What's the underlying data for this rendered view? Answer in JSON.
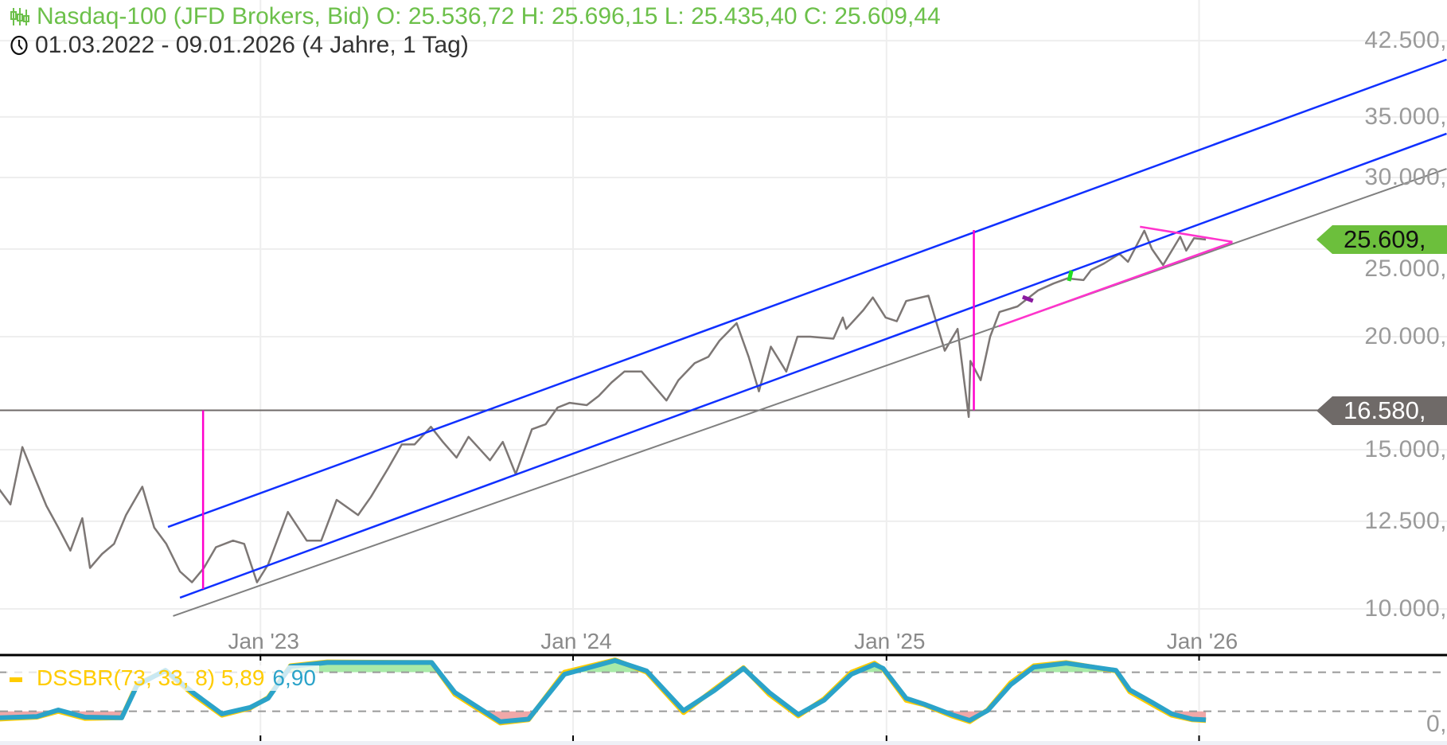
{
  "header": {
    "instrument_line": "Nasdaq-100 (JFD Brokers, Bid) O: 25.536,72  H: 25.696,15  L: 25.435,40  C: 25.609,44",
    "range_line": "01.03.2022 - 09.01.2026  (4 Jahre, 1 Tag)",
    "instrument_icon": "candlestick-icon",
    "range_icon": "clock-icon",
    "color": "#6cc04a"
  },
  "chart_data": [
    {
      "type": "line",
      "scale": "log",
      "ylim": [
        9000,
        45000
      ],
      "xlim": [
        "2022-03-01",
        "2026-09-30"
      ],
      "grid": true,
      "y_ticks": [
        {
          "value": 42500,
          "label": "42.500,"
        },
        {
          "value": 35000,
          "label": "35.000,"
        },
        {
          "value": 30000,
          "label": "30.000,"
        },
        {
          "value": 25000,
          "label": "25.000,"
        },
        {
          "value": 20000,
          "label": "20.000,"
        },
        {
          "value": 15000,
          "label": "15.000,"
        },
        {
          "value": 12500,
          "label": "12.500,"
        },
        {
          "value": 10000,
          "label": "10.000,"
        }
      ],
      "x_ticks": [
        {
          "date": "2023-01-01",
          "label": "Jan '23"
        },
        {
          "date": "2024-01-01",
          "label": "Jan '24"
        },
        {
          "date": "2025-01-01",
          "label": "Jan '25"
        },
        {
          "date": "2026-01-01",
          "label": "Jan '26"
        }
      ],
      "price_color": "#7d7775",
      "last_price": {
        "value": 25609.44,
        "label": "25.609,",
        "color": "#6cbf3c"
      },
      "level_line": {
        "value": 16580,
        "label": "16.580,",
        "color": "#6f6a68"
      },
      "series": [
        {
          "points": [
            [
              "2022-03-01",
              13600
            ],
            [
              "2022-03-15",
              13050
            ],
            [
              "2022-03-29",
              15100
            ],
            [
              "2022-04-12",
              14000
            ],
            [
              "2022-04-26",
              13000
            ],
            [
              "2022-05-10",
              12300
            ],
            [
              "2022-05-24",
              11600
            ],
            [
              "2022-06-07",
              12600
            ],
            [
              "2022-06-16",
              11100
            ],
            [
              "2022-06-30",
              11500
            ],
            [
              "2022-07-14",
              11800
            ],
            [
              "2022-07-28",
              12700
            ],
            [
              "2022-08-16",
              13650
            ],
            [
              "2022-08-30",
              12300
            ],
            [
              "2022-09-13",
              11800
            ],
            [
              "2022-09-29",
              11000
            ],
            [
              "2022-10-13",
              10700
            ],
            [
              "2022-10-27",
              11100
            ],
            [
              "2022-11-10",
              11700
            ],
            [
              "2022-11-30",
              11900
            ],
            [
              "2022-12-13",
              11800
            ],
            [
              "2022-12-28",
              10700
            ],
            [
              "2023-01-10",
              11200
            ],
            [
              "2023-02-02",
              12800
            ],
            [
              "2023-02-24",
              11900
            ],
            [
              "2023-03-13",
              11900
            ],
            [
              "2023-03-31",
              13200
            ],
            [
              "2023-04-25",
              12700
            ],
            [
              "2023-05-10",
              13300
            ],
            [
              "2023-05-30",
              14300
            ],
            [
              "2023-06-15",
              15200
            ],
            [
              "2023-06-30",
              15200
            ],
            [
              "2023-07-19",
              15900
            ],
            [
              "2023-08-02",
              15300
            ],
            [
              "2023-08-18",
              14700
            ],
            [
              "2023-09-01",
              15500
            ],
            [
              "2023-09-26",
              14600
            ],
            [
              "2023-10-11",
              15300
            ],
            [
              "2023-10-26",
              14100
            ],
            [
              "2023-11-14",
              15800
            ],
            [
              "2023-11-30",
              16000
            ],
            [
              "2023-12-14",
              16700
            ],
            [
              "2023-12-28",
              16900
            ],
            [
              "2024-01-17",
              16800
            ],
            [
              "2024-01-31",
              17200
            ],
            [
              "2024-02-15",
              17800
            ],
            [
              "2024-03-01",
              18300
            ],
            [
              "2024-03-21",
              18300
            ],
            [
              "2024-04-19",
              17000
            ],
            [
              "2024-05-03",
              17900
            ],
            [
              "2024-05-22",
              18700
            ],
            [
              "2024-06-07",
              19000
            ],
            [
              "2024-06-20",
              19800
            ],
            [
              "2024-07-10",
              20700
            ],
            [
              "2024-07-24",
              19000
            ],
            [
              "2024-08-05",
              17400
            ],
            [
              "2024-08-19",
              19500
            ],
            [
              "2024-09-06",
              18300
            ],
            [
              "2024-09-19",
              20000
            ],
            [
              "2024-10-04",
              20000
            ],
            [
              "2024-10-31",
              19900
            ],
            [
              "2024-11-11",
              21000
            ],
            [
              "2024-11-15",
              20400
            ],
            [
              "2024-12-05",
              21400
            ],
            [
              "2024-12-16",
              22100
            ],
            [
              "2024-12-31",
              21000
            ],
            [
              "2025-01-13",
              20800
            ],
            [
              "2025-01-24",
              21900
            ],
            [
              "2025-02-19",
              22200
            ],
            [
              "2025-03-10",
              19300
            ],
            [
              "2025-03-25",
              20400
            ],
            [
              "2025-04-07",
              16300
            ],
            [
              "2025-04-09",
              18800
            ],
            [
              "2025-04-21",
              17900
            ],
            [
              "2025-05-02",
              20000
            ],
            [
              "2025-05-13",
              21300
            ],
            [
              "2025-06-03",
              21600
            ],
            [
              "2025-06-27",
              22500
            ],
            [
              "2025-07-15",
              22900
            ],
            [
              "2025-07-31",
              23200
            ],
            [
              "2025-08-19",
              23100
            ],
            [
              "2025-08-28",
              23700
            ],
            [
              "2025-09-12",
              24100
            ],
            [
              "2025-09-30",
              24700
            ],
            [
              "2025-10-10",
              24200
            ],
            [
              "2025-10-29",
              26200
            ],
            [
              "2025-11-07",
              25000
            ],
            [
              "2025-11-20",
              24000
            ],
            [
              "2025-12-10",
              25800
            ],
            [
              "2025-12-17",
              24900
            ],
            [
              "2025-12-26",
              25700
            ],
            [
              "2026-01-09",
              25609
            ]
          ]
        }
      ],
      "drawings": [
        {
          "kind": "trendline",
          "color": "#1030ff",
          "from": [
            "2022-09-15",
            12320
          ],
          "to": [
            "2026-10-17",
            40500
          ]
        },
        {
          "kind": "trendline",
          "color": "#1030ff",
          "from": [
            "2022-09-29",
            10290
          ],
          "to": [
            "2026-10-17",
            33540
          ]
        },
        {
          "kind": "trendline",
          "color": "#808080",
          "from": [
            "2022-09-21",
            9820
          ],
          "to": [
            "2026-10-17",
            30670
          ]
        },
        {
          "kind": "vertical",
          "color": "#ff00cc",
          "from": [
            "2022-10-26",
            16580
          ],
          "to": [
            "2022-10-26",
            10520
          ]
        },
        {
          "kind": "vertical",
          "color": "#ff00cc",
          "from": [
            "2025-04-13",
            26240
          ],
          "to": [
            "2025-04-13",
            16580
          ]
        },
        {
          "kind": "trendline",
          "color": "#ff33cc",
          "from": [
            "2025-10-24",
            26460
          ],
          "to": [
            "2026-02-09",
            25460
          ]
        },
        {
          "kind": "trendline",
          "color": "#ff33cc",
          "from": [
            "2025-05-12",
            20540
          ],
          "to": [
            "2026-02-09",
            25440
          ]
        },
        {
          "kind": "segment",
          "color": "#8a1aa0",
          "from": [
            "2025-06-09",
            22130
          ],
          "to": [
            "2025-06-21",
            21910
          ]
        },
        {
          "kind": "segment",
          "color": "#22dd22",
          "from": [
            "2025-08-02",
            23050
          ],
          "to": [
            "2025-08-05",
            23670
          ]
        }
      ]
    },
    {
      "type": "line",
      "ylim": [
        0,
        100
      ],
      "levels": [
        80,
        20
      ],
      "y_ticks": [
        {
          "value": 0,
          "label": "0,"
        }
      ],
      "legend": {
        "name": "DSSBR(73, 33, 8)",
        "value1": "5,89",
        "value2": "6,90"
      },
      "fill_above_color": "#a8eaa8",
      "fill_below_color": "#f0a8a8",
      "series": [
        {
          "color": "#ffcc00",
          "points": [
            [
              "2022-03-01",
              8
            ],
            [
              "2022-04-15",
              11
            ],
            [
              "2022-05-10",
              20
            ],
            [
              "2022-06-10",
              9
            ],
            [
              "2022-07-23",
              10
            ],
            [
              "2022-08-10",
              62
            ],
            [
              "2022-09-12",
              82
            ],
            [
              "2022-10-15",
              45
            ],
            [
              "2022-11-17",
              14
            ],
            [
              "2022-12-20",
              25
            ],
            [
              "2023-01-10",
              41
            ],
            [
              "2023-02-05",
              90
            ],
            [
              "2023-03-20",
              96
            ],
            [
              "2023-07-20",
              95
            ],
            [
              "2023-08-16",
              46
            ],
            [
              "2023-10-08",
              2
            ],
            [
              "2023-11-10",
              7
            ],
            [
              "2023-12-22",
              80
            ],
            [
              "2024-02-19",
              99
            ],
            [
              "2024-03-27",
              80
            ],
            [
              "2024-05-09",
              18
            ],
            [
              "2024-06-14",
              54
            ],
            [
              "2024-07-18",
              87
            ],
            [
              "2024-08-17",
              46
            ],
            [
              "2024-09-20",
              13
            ],
            [
              "2024-10-20",
              39
            ],
            [
              "2024-11-21",
              80
            ],
            [
              "2024-12-18",
              94
            ],
            [
              "2024-12-28",
              85
            ],
            [
              "2025-01-24",
              37
            ],
            [
              "2025-02-14",
              30
            ],
            [
              "2025-03-18",
              13
            ],
            [
              "2025-04-08",
              4
            ],
            [
              "2025-04-29",
              22
            ],
            [
              "2025-05-26",
              64
            ],
            [
              "2025-06-22",
              90
            ],
            [
              "2025-07-30",
              95
            ],
            [
              "2025-09-26",
              82
            ],
            [
              "2025-10-12",
              50
            ],
            [
              "2025-11-08",
              30
            ],
            [
              "2025-11-30",
              14
            ],
            [
              "2025-12-24",
              7
            ],
            [
              "2026-01-09",
              5.89
            ]
          ]
        },
        {
          "color": "#2ba3c9",
          "points": [
            [
              "2022-03-01",
              10
            ],
            [
              "2022-04-15",
              12
            ],
            [
              "2022-05-10",
              22
            ],
            [
              "2022-06-10",
              11
            ],
            [
              "2022-07-23",
              10
            ],
            [
              "2022-08-10",
              60
            ],
            [
              "2022-09-12",
              83
            ],
            [
              "2022-10-15",
              48
            ],
            [
              "2022-11-17",
              16
            ],
            [
              "2022-12-20",
              26
            ],
            [
              "2023-01-10",
              40
            ],
            [
              "2023-02-05",
              89
            ],
            [
              "2023-03-20",
              95
            ],
            [
              "2023-07-20",
              95
            ],
            [
              "2023-08-16",
              49
            ],
            [
              "2023-10-08",
              4
            ],
            [
              "2023-11-10",
              8
            ],
            [
              "2023-12-22",
              77
            ],
            [
              "2024-02-19",
              98
            ],
            [
              "2024-03-27",
              82
            ],
            [
              "2024-05-09",
              21
            ],
            [
              "2024-06-14",
              52
            ],
            [
              "2024-07-18",
              86
            ],
            [
              "2024-08-17",
              49
            ],
            [
              "2024-09-20",
              15
            ],
            [
              "2024-10-20",
              37
            ],
            [
              "2024-11-21",
              77
            ],
            [
              "2024-12-18",
              92
            ],
            [
              "2024-12-28",
              86
            ],
            [
              "2025-01-24",
              40
            ],
            [
              "2025-02-14",
              31
            ],
            [
              "2025-03-18",
              15
            ],
            [
              "2025-04-08",
              6
            ],
            [
              "2025-04-29",
              21
            ],
            [
              "2025-05-26",
              61
            ],
            [
              "2025-06-22",
              88
            ],
            [
              "2025-07-30",
              94
            ],
            [
              "2025-09-26",
              83
            ],
            [
              "2025-10-12",
              53
            ],
            [
              "2025-11-08",
              33
            ],
            [
              "2025-11-30",
              16
            ],
            [
              "2025-12-24",
              8
            ],
            [
              "2026-01-09",
              6.9
            ]
          ]
        }
      ]
    }
  ]
}
